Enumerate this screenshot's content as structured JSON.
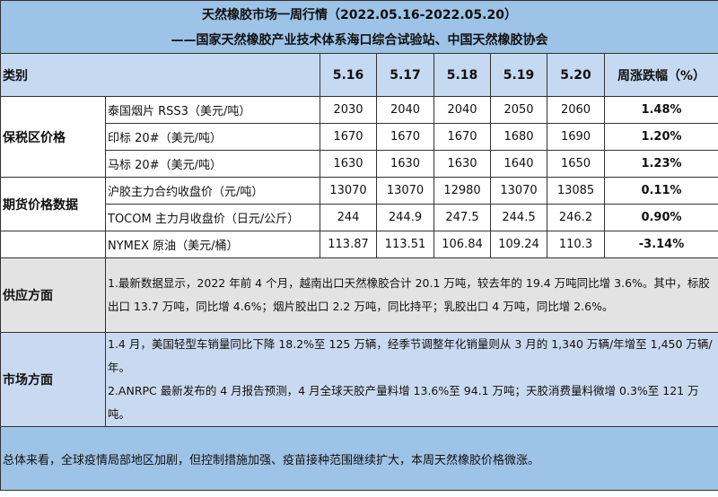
{
  "title": {
    "line1": "天然橡胶市场一周行情（2022.05.16-2022.05.20）",
    "line2": "——国家天然橡胶产业技术体系海口综合试验站、中国天然橡胶协会"
  },
  "header": {
    "category": "类别",
    "dates": [
      "5.16",
      "5.17",
      "5.18",
      "5.19",
      "5.20"
    ],
    "change": "周涨跌幅（%）"
  },
  "groups": [
    {
      "label": "保税区价格",
      "rows": [
        {
          "item": "泰国烟片 RSS3（美元/吨）",
          "values": [
            "2030",
            "2040",
            "2040",
            "2050",
            "2060"
          ],
          "change": "1.48%"
        },
        {
          "item": "印标 20#（美元/吨）",
          "values": [
            "1670",
            "1670",
            "1670",
            "1680",
            "1690"
          ],
          "change": "1.20%"
        },
        {
          "item": "马标 20#（美元/吨）",
          "values": [
            "1630",
            "1630",
            "1630",
            "1640",
            "1650"
          ],
          "change": "1.23%"
        }
      ]
    },
    {
      "label": "期货价格数据",
      "rows": [
        {
          "item": "沪胶主力合约收盘价（元/吨）",
          "values": [
            "13070",
            "13070",
            "12980",
            "13070",
            "13085"
          ],
          "change": "0.11%"
        },
        {
          "item": "TOCOM 主力月收盘价（日元/公斤）",
          "values": [
            "244",
            "244.9",
            "247.5",
            "244.5",
            "246.2"
          ],
          "change": "0.90%"
        }
      ]
    },
    {
      "label": "",
      "rows": [
        {
          "item": "NYMEX 原油（美元/桶）",
          "values": [
            "113.87",
            "113.51",
            "106.84",
            "109.24",
            "110.3"
          ],
          "change": "-3.14%"
        }
      ]
    }
  ],
  "supply": {
    "label": "供应方面",
    "text": "1.最新数据显示，2022 年前 4 个月，越南出口天然橡胶合计 20.1 万吨，较去年的 19.4 万吨同比增 3.6%。其中，标胶出口 13.7 万吨，同比增 4.6%；烟片胶出口 2.2 万吨，同比持平；乳胶出口 4 万吨，同比增 2.6%。"
  },
  "market": {
    "label": "市场方面",
    "text1": "1.4 月，美国轻型车销量同比下降 18.2%至 125 万辆，经季节调整年化销量则从 3 月的 1,340 万辆/年增至 1,450 万辆/年。",
    "text2": "2.ANRPC 最新发布的 4 月报告预测，4 月全球天胶产量料增 13.6%至 94.1 万吨；天胶消费量料微增 0.3%至 121 万吨。"
  },
  "summary": "总体来看，全球疫情局部地区加剧，但控制措施加强、疫苗接种范围继续扩大，本周天然橡胶价格微涨。",
  "colors": {
    "title_bg": "#9dc3e6",
    "header_bg": "#c5d9f1",
    "supply_bg": "#e3e3e3",
    "market_bg": "#c9daf0"
  }
}
